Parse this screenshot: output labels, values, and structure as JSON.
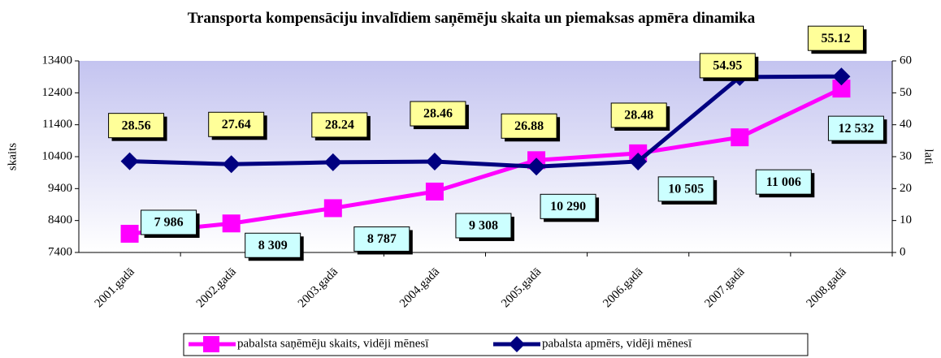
{
  "chart_data": {
    "type": "line",
    "title": "Transporta kompensāciju invalīdiem saņēmēju skaita un piemaksas apmēra dinamika",
    "ylabel": "skaits",
    "y2label": "lati",
    "categories": [
      "2001.gadā",
      "2002.gadā",
      "2003.gadā",
      "2004.gadā",
      "2005.gadā",
      "2006.gadā",
      "2007.gadā",
      "2008.gadā"
    ],
    "series": [
      {
        "name": "pabalsta saņēmēju skaits, vidēji mēnesī",
        "color": "#ff00ff",
        "marker": "square",
        "values": [
          7986,
          8309,
          8787,
          9308,
          10290,
          10505,
          11006,
          12532
        ],
        "value_labels": [
          "7 986",
          "8 309",
          "8 787",
          "9 308",
          "10 290",
          "10 505",
          "11 006",
          "12 532"
        ]
      },
      {
        "name": "pabalsta apmērs, vidēji mēnesī",
        "color": "#000080",
        "marker": "diamond",
        "axis": "y2",
        "values": [
          28.56,
          27.64,
          28.24,
          28.46,
          26.88,
          28.48,
          54.95,
          55.12
        ]
      }
    ],
    "ylim": [
      7400,
      13400
    ],
    "yticks": [
      7400,
      8400,
      9400,
      10400,
      11400,
      12400,
      13400
    ],
    "y2lim": [
      0,
      60
    ],
    "y2ticks": [
      0,
      10,
      20,
      30,
      40,
      50,
      60
    ]
  }
}
